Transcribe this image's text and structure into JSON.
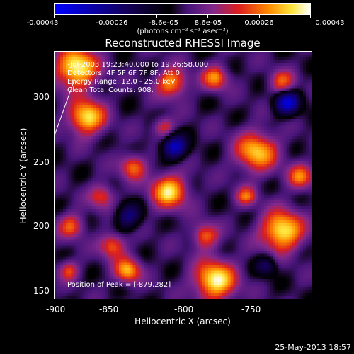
{
  "colorbar": {
    "tick_labels": [
      "-0.00043",
      "-0.00026",
      "-8.6e-05",
      "8.6e-05",
      "0.00026",
      "0.00043"
    ],
    "unit_label": "(photons cm⁻² s⁻¹ asec⁻²)"
  },
  "plot": {
    "title": "Reconstructed RHESSI Image",
    "info_lines": [
      "-Jul-2003 19:23:40.000 to 19:26:58.000",
      "Detectors: 4F 5F 6F 7F 8F, Att 0",
      "Energy Range: 12.0 - 25.0 keV",
      "Clean    Total Counts: 908."
    ],
    "peak_text": "Position of Peak = [-879,282]",
    "x_title": "Heliocentric X (arcsec)",
    "y_title": "Heliocentric Y (arcsec)",
    "x_ticks": [
      "-900",
      "-850",
      "-800",
      "-750"
    ],
    "y_ticks": [
      "150",
      "200",
      "250",
      "300"
    ]
  },
  "timestamp": "25-May-2013 18:57"
}
